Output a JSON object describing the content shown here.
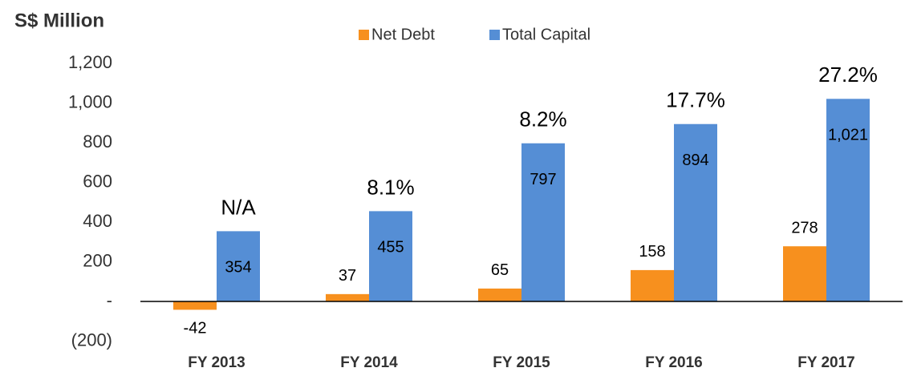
{
  "chart_data": {
    "type": "bar",
    "title": "S$ Million",
    "categories": [
      "FY 2013",
      "FY 2014",
      "FY 2015",
      "FY 2016",
      "FY 2017"
    ],
    "series": [
      {
        "name": "Net Debt",
        "color": "#f7901e",
        "values": [
          -42,
          37,
          65,
          158,
          278
        ]
      },
      {
        "name": "Total Capital",
        "color": "#558ed5",
        "values": [
          354,
          455,
          797,
          894,
          1021
        ],
        "value_labels": [
          "354",
          "455",
          "797",
          "894",
          "1,021"
        ]
      }
    ],
    "annotations": [
      "N/A",
      "8.1%",
      "8.2%",
      "17.7%",
      "27.2%"
    ],
    "ylim": [
      -200,
      1200
    ],
    "yticks": [
      {
        "value": -200,
        "label": "(200)"
      },
      {
        "value": 0,
        "label": "-"
      },
      200,
      400,
      600,
      800,
      {
        "value": 1000,
        "label": "1,000"
      },
      {
        "value": 1200,
        "label": "1,200"
      }
    ],
    "legend": "top"
  }
}
